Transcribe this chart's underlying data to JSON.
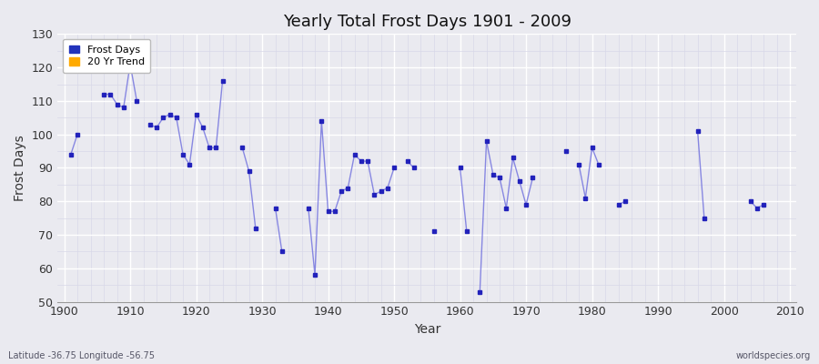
{
  "title": "Yearly Total Frost Days 1901 - 2009",
  "xlabel": "Year",
  "ylabel": "Frost Days",
  "subtitle": "Latitude -36.75 Longitude -56.75",
  "watermark": "worldspecies.org",
  "ylim": [
    50,
    130
  ],
  "xlim": [
    1899,
    2011
  ],
  "yticks": [
    50,
    60,
    70,
    80,
    90,
    100,
    110,
    120,
    130
  ],
  "xticks": [
    1900,
    1910,
    1920,
    1930,
    1940,
    1950,
    1960,
    1970,
    1980,
    1990,
    2000,
    2010
  ],
  "line_color": "#6666dd",
  "marker_color": "#2222bb",
  "bg_color": "#eaeaf0",
  "grid_major_color": "#ffffff",
  "grid_minor_color": "#d8d8e8",
  "legend_frost_color": "#2233bb",
  "legend_trend_color": "#ffaa00",
  "years": [
    1901,
    1902,
    1906,
    1907,
    1908,
    1909,
    1910,
    1911,
    1913,
    1914,
    1915,
    1916,
    1917,
    1918,
    1919,
    1920,
    1921,
    1922,
    1923,
    1924,
    1927,
    1928,
    1929,
    1932,
    1933,
    1937,
    1938,
    1939,
    1940,
    1941,
    1942,
    1943,
    1944,
    1945,
    1946,
    1947,
    1948,
    1949,
    1950,
    1952,
    1953,
    1956,
    1960,
    1961,
    1963,
    1964,
    1965,
    1966,
    1967,
    1968,
    1969,
    1970,
    1971,
    1976,
    1978,
    1979,
    1980,
    1981,
    1984,
    1985,
    1996,
    1997,
    2004,
    2005,
    2006
  ],
  "values": [
    94,
    100,
    112,
    112,
    109,
    108,
    121,
    110,
    103,
    102,
    105,
    106,
    105,
    94,
    91,
    106,
    102,
    96,
    96,
    116,
    96,
    89,
    72,
    78,
    65,
    78,
    58,
    104,
    77,
    77,
    83,
    84,
    94,
    92,
    92,
    82,
    83,
    84,
    90,
    92,
    90,
    71,
    90,
    71,
    53,
    98,
    88,
    87,
    78,
    93,
    86,
    79,
    87,
    95,
    91,
    81,
    96,
    91,
    79,
    80,
    101,
    75,
    80,
    78,
    79
  ],
  "connect_threshold": 1
}
